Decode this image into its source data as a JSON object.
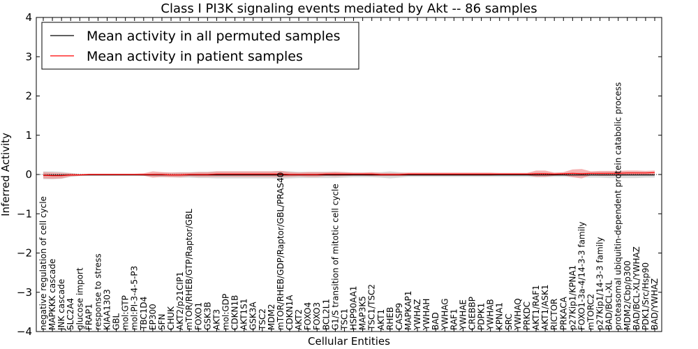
{
  "chart_data": {
    "type": "line",
    "title": "Class I PI3K signaling events mediated by Akt -- 86 samples",
    "xlabel": "Cellular Entities",
    "ylabel": "Inferred Activity",
    "ylim": [
      -4,
      4
    ],
    "yticks": [
      "−4",
      "−3",
      "−2",
      "−1",
      "0",
      "1",
      "2",
      "3",
      "4"
    ],
    "legend_position": "top-left",
    "colors": {
      "permuted": "#000000",
      "patient": "#ff0000",
      "patient_band": "#f08080",
      "permuted_band": "#c0c0c0"
    },
    "categories": [
      "negative regulation of cell cycle",
      "MAPKKK cascade",
      "JNK cascade",
      "SLC2A4",
      "glucose import",
      "FRAP1",
      "response to stress",
      "KIAA1303",
      "GBL",
      "mol:GTP",
      "mol:PI-3-4-5-P3",
      "TBC1D4",
      "EP300",
      "SFN",
      "CHUK",
      "AKT2/p21CIP1",
      "mTOR/RHEB/GTP/Raptor/GBL",
      "FOXO1",
      "GSK3B",
      "AKT3",
      "mol:GDP",
      "CDKN1B",
      "AKT1S1",
      "GSK3A",
      "TSC2",
      "MDM2",
      "mTOR/RHEB/GDP/Raptor/GBL/PRAS40",
      "CDKN1A",
      "AKT2",
      "FOXO4",
      "FOXO3",
      "BCL2L1",
      "G1/S transition of mitotic cell cycle",
      "TSC1",
      "HSP90AA1",
      "MAP3K5",
      "TSC1/TSC2",
      "AKT1",
      "RHEB",
      "CASP9",
      "MAPKAP1",
      "YWHAZ",
      "YWHAH",
      "BAD",
      "YWHAG",
      "RAF1",
      "YWHAE",
      "CREBBP",
      "PDPK1",
      "YWHAB",
      "KPNA1",
      "SRC",
      "YWHAQ",
      "PRKDC",
      "AKT1/RAF1",
      "AKT1/ASK1",
      "RICTOR",
      "PRKACA",
      "p27Kip1/KPNA1",
      "FOXO1-3a-4/14-3-3 family",
      "mTORC2",
      "p27Kip1/14-3-3 family",
      "BAD/BCL-XL",
      "proteasomal ubiquitin-dependent protein catabolic process",
      "MDM2/Cbp/p300",
      "BAD/BCL-XL/YWHAZ",
      "PDK1/Src/Hsp90",
      "BAD/YWHAZ"
    ],
    "series": [
      {
        "name": "Mean activity in all permuted samples",
        "values": [
          -0.02,
          -0.02,
          -0.02,
          -0.01,
          -0.01,
          -0.01,
          -0.01,
          -0.01,
          -0.01,
          -0.01,
          -0.01,
          -0.01,
          -0.01,
          -0.01,
          -0.01,
          -0.01,
          -0.01,
          -0.01,
          -0.01,
          -0.01,
          -0.01,
          -0.01,
          -0.01,
          -0.01,
          -0.01,
          -0.01,
          -0.01,
          -0.01,
          -0.01,
          -0.01,
          -0.01,
          -0.01,
          -0.01,
          -0.01,
          -0.01,
          -0.01,
          -0.01,
          -0.01,
          -0.01,
          -0.01,
          -0.01,
          -0.01,
          -0.01,
          -0.01,
          -0.01,
          -0.01,
          -0.01,
          -0.01,
          -0.01,
          -0.01,
          -0.01,
          -0.01,
          -0.01,
          -0.01,
          -0.01,
          -0.01,
          -0.01,
          -0.01,
          -0.01,
          -0.01,
          -0.01,
          -0.01,
          -0.01,
          -0.01,
          -0.01,
          -0.01,
          -0.01,
          -0.01
        ],
        "band": [
          0.1,
          0.1,
          0.09,
          0.05,
          0.03,
          0.02,
          0.02,
          0.02,
          0.02,
          0.02,
          0.02,
          0.02,
          0.04,
          0.06,
          0.06,
          0.07,
          0.07,
          0.08,
          0.08,
          0.09,
          0.09,
          0.09,
          0.09,
          0.09,
          0.09,
          0.09,
          0.1,
          0.09,
          0.08,
          0.08,
          0.08,
          0.08,
          0.08,
          0.07,
          0.06,
          0.06,
          0.06,
          0.07,
          0.09,
          0.07,
          0.05,
          0.05,
          0.05,
          0.05,
          0.05,
          0.05,
          0.05,
          0.05,
          0.05,
          0.05,
          0.05,
          0.05,
          0.05,
          0.05,
          0.06,
          0.06,
          0.05,
          0.05,
          0.06,
          0.06,
          0.07,
          0.07,
          0.08,
          0.08,
          0.08,
          0.08,
          0.07,
          0.07
        ]
      },
      {
        "name": "Mean activity in patient samples",
        "values": [
          -0.02,
          -0.03,
          -0.03,
          -0.01,
          -0.01,
          0.0,
          0.0,
          0.0,
          0.0,
          0.0,
          0.0,
          0.0,
          0.0,
          0.0,
          -0.01,
          -0.01,
          0.0,
          0.0,
          0.0,
          0.01,
          0.01,
          0.01,
          0.01,
          0.01,
          0.01,
          0.01,
          0.01,
          0.0,
          0.0,
          0.0,
          0.0,
          0.01,
          0.01,
          0.01,
          0.01,
          0.01,
          0.01,
          0.0,
          0.0,
          0.0,
          0.01,
          0.01,
          0.01,
          0.01,
          0.01,
          0.01,
          0.01,
          0.01,
          0.01,
          0.01,
          0.01,
          0.01,
          0.01,
          0.01,
          0.02,
          0.02,
          0.01,
          0.02,
          0.03,
          0.02,
          0.03,
          0.03,
          0.03,
          0.03,
          0.04,
          0.04,
          0.04,
          0.05
        ],
        "band": [
          0.08,
          0.08,
          0.07,
          0.04,
          0.02,
          0.02,
          0.02,
          0.02,
          0.02,
          0.02,
          0.02,
          0.03,
          0.08,
          0.06,
          0.06,
          0.06,
          0.05,
          0.06,
          0.06,
          0.07,
          0.07,
          0.07,
          0.07,
          0.07,
          0.07,
          0.07,
          0.08,
          0.06,
          0.05,
          0.06,
          0.06,
          0.05,
          0.06,
          0.05,
          0.04,
          0.04,
          0.05,
          0.04,
          0.04,
          0.04,
          0.04,
          0.04,
          0.04,
          0.04,
          0.04,
          0.04,
          0.04,
          0.04,
          0.04,
          0.04,
          0.03,
          0.03,
          0.03,
          0.03,
          0.08,
          0.08,
          0.04,
          0.04,
          0.1,
          0.12,
          0.05,
          0.06,
          0.06,
          0.06,
          0.06,
          0.06,
          0.05,
          0.05
        ]
      }
    ]
  }
}
